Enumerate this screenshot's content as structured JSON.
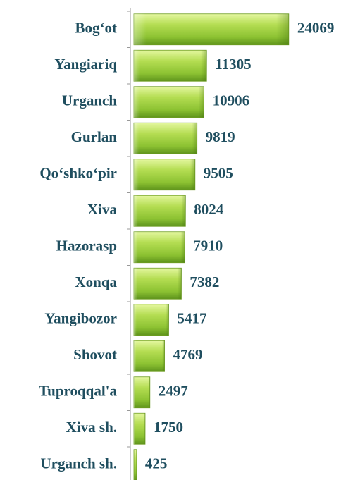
{
  "chart_data": {
    "type": "bar",
    "orientation": "horizontal",
    "categories": [
      "Bog‘ot",
      "Yangiariq",
      "Urganch",
      "Gurlan",
      "Qo‘shko‘pir",
      "Xiva",
      "Hazorasp",
      "Xonqa",
      "Yangibozor",
      "Shovot",
      "Tuproqqal'a",
      "Xiva sh.",
      "Urganch sh."
    ],
    "values": [
      24069,
      11305,
      10906,
      9819,
      9505,
      8024,
      7910,
      7382,
      5417,
      4769,
      2497,
      1750,
      425
    ],
    "color": "#9ccc3c",
    "xlim": [
      0,
      30000
    ]
  }
}
